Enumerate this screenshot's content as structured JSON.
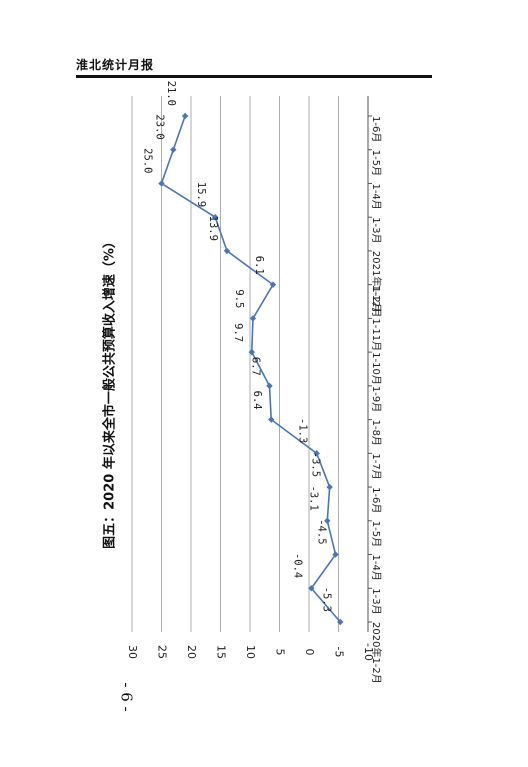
{
  "header": {
    "title": "淮北统计月报"
  },
  "page": {
    "number": "- 6 -"
  },
  "chart_data": {
    "type": "line",
    "title": "图五：2020 年以来全市一般公共预算收入增速（%）",
    "categories": [
      "2020年1-2月",
      "1-3月",
      "1-4月",
      "1-5月",
      "1-6月",
      "1-7月",
      "1-8月",
      "1-9月",
      "1-10月",
      "1-11月",
      "1-12月",
      "2021年1-2月",
      "1-3月",
      "1-4月",
      "1-5月",
      "1-6月"
    ],
    "series": [
      {
        "values": [
          -5.3,
          -0.4,
          -4.5,
          -3.1,
          -3.5,
          -1.3,
          6.4,
          6.7,
          9.7,
          9.5,
          6.1,
          13.9,
          15.9,
          25.0,
          23.0,
          21.0
        ]
      }
    ],
    "value_labels": [
      "-5.3",
      "-0.4",
      "-4.5",
      "-3.1",
      "-3.5",
      "-1.3",
      "6.4",
      "6.7",
      "9.7",
      "9.5",
      "6.1",
      "13.9",
      "15.9",
      "25.0",
      "23.0",
      "21.0"
    ],
    "ylim": [
      -10,
      30
    ],
    "yticks": [
      "-10",
      "-5",
      "0",
      "5",
      "10",
      "15",
      "20",
      "25",
      "30"
    ],
    "ytick_values": [
      -10,
      -5,
      0,
      5,
      10,
      15,
      20,
      25,
      30
    ],
    "grid": true,
    "line_color": "#4a76b8"
  }
}
